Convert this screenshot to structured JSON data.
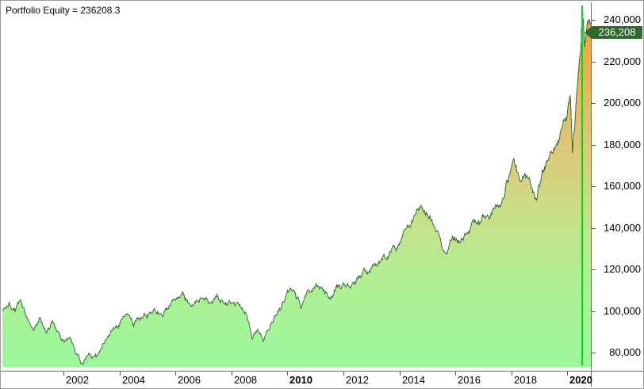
{
  "header": {
    "title": "Portfolio Equity = 236208.3"
  },
  "colors": {
    "window_bg": "#ffffff",
    "border": "#9a9a9a",
    "axis_line": "#6a6a6a",
    "text": "#000000",
    "line": "#3a6e38",
    "cursor": "#00dc1e",
    "tag_bg": "#2d6a2d",
    "tag_text": "#ffffff",
    "fill_gradient": [
      [
        0.0,
        "#f2a13e"
      ],
      [
        0.15,
        "#ecae53"
      ],
      [
        0.3,
        "#e3c06e"
      ],
      [
        0.45,
        "#d6d07e"
      ],
      [
        0.6,
        "#c4e38a"
      ],
      [
        0.78,
        "#adf094"
      ],
      [
        1.0,
        "#9cf79c"
      ]
    ]
  },
  "chart_data": {
    "type": "area",
    "title": "Portfolio Equity",
    "current_value": 236208.3,
    "legend_position": "top-left",
    "grid": false,
    "x_range": [
      1999.8,
      2020.85
    ],
    "y_axis": {
      "side": "right",
      "tick_values": [
        240000,
        220000,
        200000,
        180000,
        160000,
        140000,
        120000,
        100000,
        80000
      ],
      "tick_labels": [
        "240,000",
        "220,000",
        "200,000",
        "180,000",
        "160,000",
        "140,000",
        "120,000",
        "100,000",
        "80,000"
      ],
      "pixel_floor_value": 73000
    },
    "x_axis": {
      "tick_values": [
        2002,
        2004,
        2006,
        2008,
        2010,
        2012,
        2014,
        2016,
        2018,
        2020
      ],
      "tick_labels": [
        "2002",
        "2004",
        "2006",
        "2008",
        "2010",
        "2012",
        "2014",
        "2016",
        "2018",
        "2020"
      ],
      "bold_labels": [
        "2010",
        "2020"
      ]
    },
    "cursor": {
      "x": 2020.52,
      "value": 236208,
      "label": "236,208"
    },
    "series": [
      {
        "name": "Portfolio Equity",
        "points": [
          [
            1999.82,
            99500
          ],
          [
            2000.05,
            104000
          ],
          [
            2000.2,
            100000
          ],
          [
            2000.45,
            104500
          ],
          [
            2000.7,
            97500
          ],
          [
            2000.95,
            93500
          ],
          [
            2001.15,
            96500
          ],
          [
            2001.4,
            89000
          ],
          [
            2001.6,
            94000
          ],
          [
            2001.75,
            90000
          ],
          [
            2002.0,
            84500
          ],
          [
            2002.2,
            87000
          ],
          [
            2002.45,
            80500
          ],
          [
            2002.7,
            74500
          ],
          [
            2002.9,
            80000
          ],
          [
            2003.1,
            77500
          ],
          [
            2003.4,
            84000
          ],
          [
            2003.7,
            89500
          ],
          [
            2004.0,
            94500
          ],
          [
            2004.25,
            97500
          ],
          [
            2004.5,
            94000
          ],
          [
            2004.75,
            97000
          ],
          [
            2005.0,
            99500
          ],
          [
            2005.25,
            102000
          ],
          [
            2005.5,
            99000
          ],
          [
            2005.75,
            102500
          ],
          [
            2006.0,
            105500
          ],
          [
            2006.25,
            107500
          ],
          [
            2006.5,
            103500
          ],
          [
            2006.75,
            105500
          ],
          [
            2007.0,
            107000
          ],
          [
            2007.25,
            103500
          ],
          [
            2007.5,
            107000
          ],
          [
            2007.75,
            105000
          ],
          [
            2008.0,
            104500
          ],
          [
            2008.3,
            101500
          ],
          [
            2008.55,
            99000
          ],
          [
            2008.75,
            85500
          ],
          [
            2008.95,
            91500
          ],
          [
            2009.15,
            84500
          ],
          [
            2009.4,
            94000
          ],
          [
            2009.7,
            101000
          ],
          [
            2010.0,
            109500
          ],
          [
            2010.25,
            111500
          ],
          [
            2010.5,
            104500
          ],
          [
            2010.75,
            108500
          ],
          [
            2011.0,
            112000
          ],
          [
            2011.25,
            109500
          ],
          [
            2011.5,
            106500
          ],
          [
            2011.75,
            111000
          ],
          [
            2012.0,
            114500
          ],
          [
            2012.3,
            112500
          ],
          [
            2012.6,
            116500
          ],
          [
            2012.9,
            119000
          ],
          [
            2013.2,
            122500
          ],
          [
            2013.5,
            126000
          ],
          [
            2013.8,
            130500
          ],
          [
            2014.1,
            136000
          ],
          [
            2014.4,
            142500
          ],
          [
            2014.75,
            151000
          ],
          [
            2015.0,
            146500
          ],
          [
            2015.3,
            139500
          ],
          [
            2015.65,
            127500
          ],
          [
            2015.9,
            135500
          ],
          [
            2016.15,
            132500
          ],
          [
            2016.45,
            139000
          ],
          [
            2016.75,
            143500
          ],
          [
            2017.0,
            147000
          ],
          [
            2017.25,
            145000
          ],
          [
            2017.5,
            151500
          ],
          [
            2017.75,
            157000
          ],
          [
            2018.0,
            168000
          ],
          [
            2018.1,
            171000
          ],
          [
            2018.3,
            162500
          ],
          [
            2018.5,
            166500
          ],
          [
            2018.7,
            159500
          ],
          [
            2018.9,
            151500
          ],
          [
            2019.1,
            166000
          ],
          [
            2019.35,
            173500
          ],
          [
            2019.55,
            179000
          ],
          [
            2019.75,
            186000
          ],
          [
            2019.95,
            195500
          ],
          [
            2020.1,
            203500
          ],
          [
            2020.18,
            175500
          ],
          [
            2020.28,
            194000
          ],
          [
            2020.38,
            213000
          ],
          [
            2020.48,
            228000
          ],
          [
            2020.52,
            236208
          ],
          [
            2020.56,
            243500
          ],
          [
            2020.62,
            226500
          ],
          [
            2020.7,
            233500
          ],
          [
            2020.78,
            238000
          ],
          [
            2020.85,
            236500
          ]
        ]
      }
    ]
  }
}
